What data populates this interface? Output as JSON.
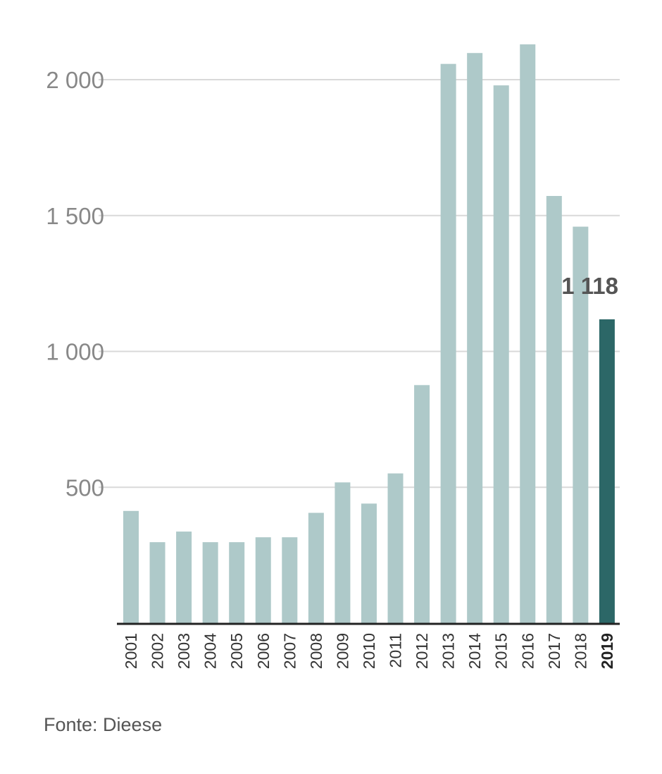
{
  "chart_data": {
    "type": "bar",
    "title": "",
    "xlabel": "",
    "ylabel": "",
    "categories": [
      "2001",
      "2002",
      "2003",
      "2004",
      "2005",
      "2006",
      "2007",
      "2008",
      "2009",
      "2010",
      "2011",
      "2012",
      "2013",
      "2014",
      "2015",
      "2016",
      "2017",
      "2018",
      "2019"
    ],
    "values": [
      413,
      298,
      337,
      298,
      298,
      316,
      316,
      406,
      518,
      440,
      551,
      876,
      2058,
      2098,
      1979,
      2130,
      1572,
      1459,
      1118
    ],
    "ylim": [
      0,
      2200
    ],
    "yticks": [
      500,
      1000,
      1500,
      2000
    ],
    "ytick_labels": [
      "500",
      "1 000",
      "1 500",
      "2 000"
    ],
    "grid": true,
    "highlight": {
      "category": "2019",
      "label": "1 118"
    },
    "colors": {
      "bar": "#aec9c9",
      "highlight": "#2c6767",
      "grid": "#d9d9d9",
      "axis": "#222222"
    }
  },
  "source": "Fonte: Dieese"
}
